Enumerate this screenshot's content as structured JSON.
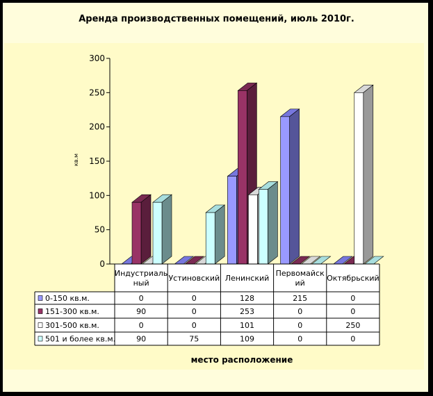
{
  "chart_data": {
    "type": "bar",
    "title": "Аренда производственных помещений, июль 2010г.",
    "ylabel": "кв.м",
    "xlabel": "место расположение",
    "ylim": [
      0,
      300
    ],
    "yticks": [
      0,
      50,
      100,
      150,
      200,
      250,
      300
    ],
    "categories": [
      "Индустриальный",
      "Устиновский",
      "Ленинский",
      "Первомайский",
      "Октябрьский"
    ],
    "category_display": [
      "Индустриаль ный",
      "Устиновский",
      "Ленинский",
      "Первомайск ий",
      "Октябрьский"
    ],
    "series": [
      {
        "name": "0-150 кв.м.",
        "values": [
          0,
          0,
          128,
          215,
          0
        ]
      },
      {
        "name": "151-300 кв.м.",
        "values": [
          90,
          0,
          253,
          0,
          0
        ]
      },
      {
        "name": "301-500 кв.м.",
        "values": [
          0,
          0,
          101,
          0,
          250
        ]
      },
      {
        "name": "501 и более кв.м.",
        "values": [
          90,
          75,
          109,
          0,
          0
        ]
      }
    ],
    "colors": [
      "#9999ff",
      "#993366",
      "#ffffff",
      "#ccffff"
    ],
    "side_colors": [
      "#555599",
      "#5a1e3c",
      "#999999",
      "#6b8c8c"
    ],
    "top_colors": [
      "#7777dd",
      "#7a2a52",
      "#d8d8d8",
      "#a8dede"
    ],
    "grid": false,
    "legend": "table-below"
  }
}
